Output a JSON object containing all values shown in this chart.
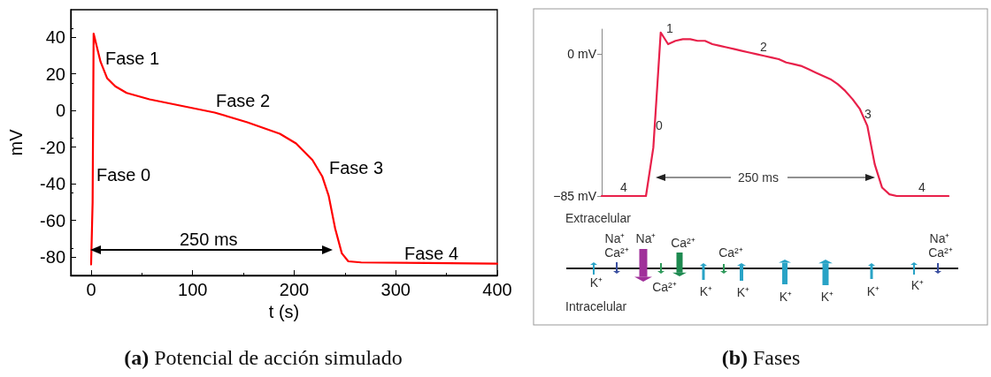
{
  "chart_data": [
    {
      "type": "line",
      "title": "(a) Potencial de acción simulado",
      "xlabel": "t (s)",
      "ylabel": "mV",
      "color": "#ff0000",
      "marker": "none",
      "xlim": [
        -20,
        400
      ],
      "ylim": [
        -90,
        55
      ],
      "xticks": [
        0,
        100,
        200,
        300,
        400
      ],
      "yticks": [
        -80,
        -60,
        -40,
        -20,
        0,
        20,
        40
      ],
      "x": [
        0,
        1.5,
        2.5,
        6.1,
        9.3,
        15.7,
        23.8,
        35,
        57.5,
        89.6,
        121.7,
        153.8,
        185.9,
        201.9,
        218,
        227.6,
        234,
        240.4,
        246.9,
        253.3,
        266,
        330,
        400
      ],
      "values": [
        -84,
        -50,
        42,
        33.8,
        26.6,
        17.7,
        13.2,
        9.6,
        6.1,
        2.5,
        -1.1,
        -6.4,
        -12.7,
        -18,
        -27,
        -35.9,
        -46.6,
        -64.5,
        -77.9,
        -82.3,
        -82.9,
        -83.2,
        -83.6
      ],
      "annotations": [
        "Fase 0",
        "Fase 1",
        "Fase 2",
        "Fase 3",
        "Fase 4",
        "250 ms"
      ]
    },
    {
      "type": "line",
      "title": "(b) Fases",
      "color": "#e8204a",
      "marker": "none",
      "tick_labels": "y",
      "ylim": [
        -85,
        15
      ],
      "yticks": [
        {
          "value": 0,
          "label": "0 mV"
        },
        {
          "value": -85,
          "label": "−85 mV"
        }
      ],
      "categories": [
        null,
        null,
        null,
        null,
        null,
        null,
        null,
        null,
        null,
        null,
        null,
        null,
        null,
        null,
        null,
        null,
        null,
        null,
        null,
        null,
        null,
        null,
        null,
        null,
        null,
        null,
        null,
        null,
        null,
        null,
        null,
        null,
        null,
        null,
        null,
        null,
        null,
        null,
        null,
        null,
        null,
        null,
        null,
        null,
        null,
        null,
        null,
        null
      ],
      "values": [
        -85,
        -85,
        -85,
        -85,
        -85,
        -85,
        -85,
        -56,
        13,
        6,
        8,
        9,
        9,
        8,
        8,
        6,
        5,
        4,
        3,
        2,
        1,
        0,
        -1,
        -2,
        -3,
        -5,
        -6,
        -7,
        -9,
        -11,
        -13,
        -15,
        -18,
        -22,
        -27,
        -33,
        -43,
        -66,
        -80,
        -84,
        -85,
        -85,
        -85,
        -85,
        -85,
        -85,
        -85,
        -85
      ],
      "annotations": [
        "0",
        "1",
        "2",
        "3",
        "4",
        "4",
        "250 ms",
        "Extracelular",
        "Na⁺",
        "Ca²⁺",
        "Na⁺",
        "Ca²⁺",
        "Ca²⁺",
        "Na⁺",
        "Ca²⁺",
        "K⁺",
        "Ca²⁺",
        "K⁺",
        "K⁺",
        "K⁺",
        "K⁺",
        "K⁺",
        "K⁺",
        "Intracelular"
      ]
    }
  ]
}
